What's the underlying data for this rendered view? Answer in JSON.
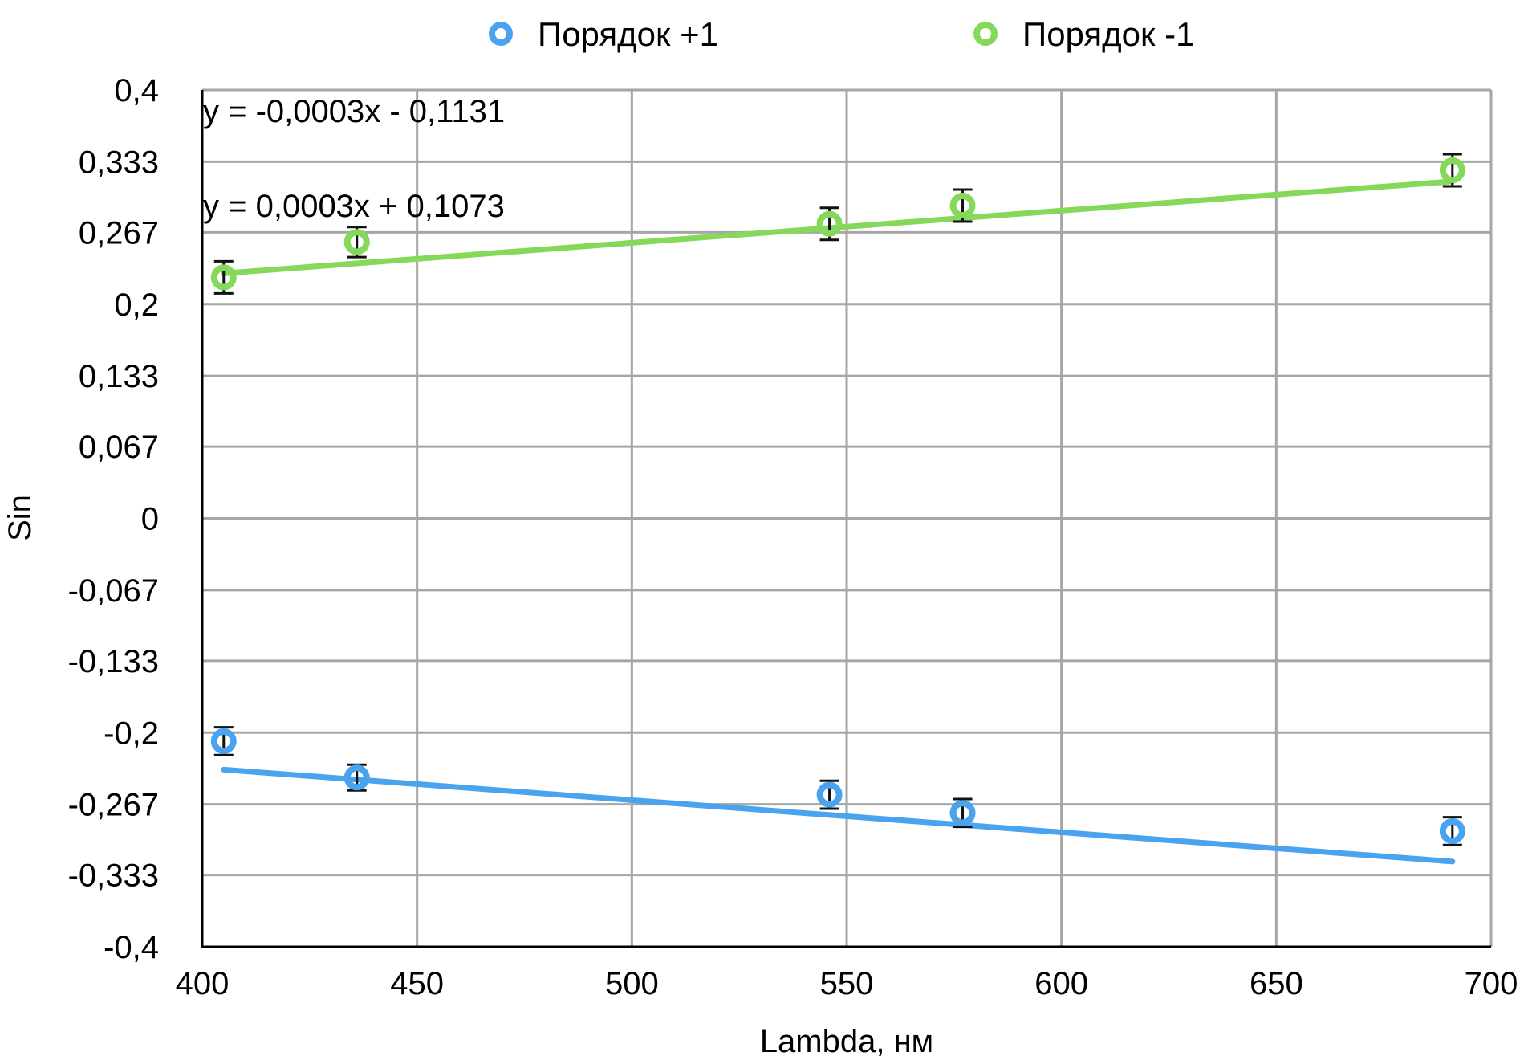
{
  "chart_data": {
    "type": "scatter",
    "xlabel": "Lambda, нм",
    "ylabel": "Sin",
    "xlim": [
      400,
      700
    ],
    "ylim": [
      -0.4,
      0.4
    ],
    "x_ticks": [
      "400",
      "450",
      "500",
      "550",
      "600",
      "650",
      "700"
    ],
    "x_tick_values": [
      400,
      450,
      500,
      550,
      600,
      650,
      700
    ],
    "y_ticks": [
      "0,4",
      "0,333",
      "0,267",
      "0,2",
      "0,133",
      "0,067",
      "0",
      "-0,067",
      "-0,133",
      "-0,2",
      "-0,267",
      "-0,333",
      "-0,4"
    ],
    "y_tick_values": [
      0.4,
      0.333,
      0.267,
      0.2,
      0.133,
      0.067,
      0,
      -0.067,
      -0.133,
      -0.2,
      -0.267,
      -0.333,
      -0.4
    ],
    "grid": true,
    "legend_position": "top-center",
    "series": [
      {
        "name": "Порядок +1",
        "color": "#4aa3ee",
        "x": [
          405,
          436,
          546,
          577,
          691
        ],
        "y": [
          -0.208,
          -0.242,
          -0.258,
          -0.275,
          -0.292
        ],
        "error": [
          0.013,
          0.012,
          0.013,
          0.013,
          0.013
        ],
        "trendline": {
          "slope": -0.0003,
          "intercept": -0.1131,
          "x_range": [
            405,
            691
          ],
          "color": "#4aa3ee"
        }
      },
      {
        "name": "Порядок -1",
        "color": "#86d85a",
        "x": [
          405,
          436,
          546,
          577,
          691
        ],
        "y": [
          0.225,
          0.258,
          0.275,
          0.292,
          0.325
        ],
        "error": [
          0.015,
          0.014,
          0.015,
          0.015,
          0.015
        ],
        "trendline": {
          "slope": 0.0003,
          "intercept": 0.1073,
          "x_range": [
            405,
            691
          ],
          "color": "#86d85a"
        }
      }
    ],
    "annotations": [
      "y = -0,0003x - 0,1131",
      "y = 0,0003x + 0,1073"
    ]
  }
}
